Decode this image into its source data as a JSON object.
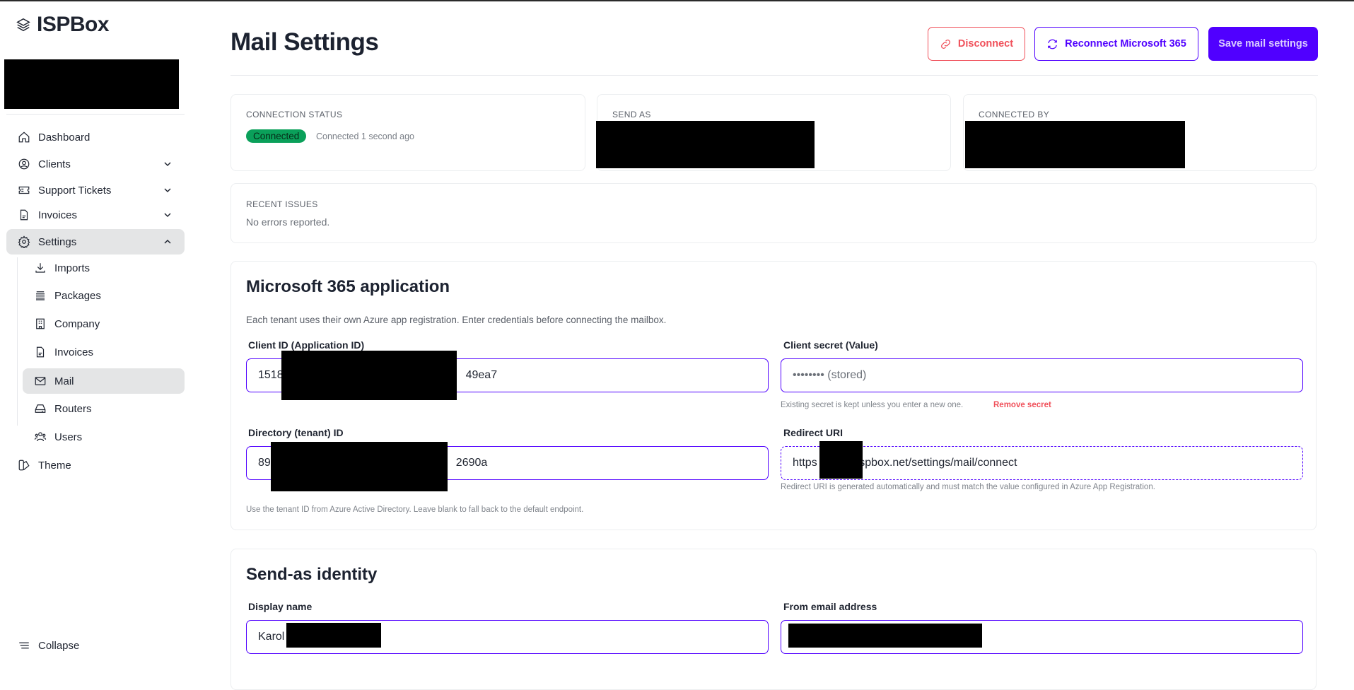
{
  "app": {
    "name": "ISPBox"
  },
  "sidebar": {
    "items": [
      {
        "label": "Dashboard",
        "icon": "home-icon"
      },
      {
        "label": "Clients",
        "icon": "user-circle-icon"
      },
      {
        "label": "Support Tickets",
        "icon": "ticket-icon"
      },
      {
        "label": "Invoices",
        "icon": "document-icon"
      },
      {
        "label": "Settings",
        "icon": "gear-icon"
      }
    ],
    "settings_items": [
      {
        "label": "Imports",
        "icon": "download-icon"
      },
      {
        "label": "Packages",
        "icon": "stack-icon"
      },
      {
        "label": "Company",
        "icon": "building-icon"
      },
      {
        "label": "Invoices",
        "icon": "document-icon"
      },
      {
        "label": "Mail",
        "icon": "envelope-icon"
      },
      {
        "label": "Routers",
        "icon": "router-icon"
      },
      {
        "label": "Users",
        "icon": "users-icon"
      }
    ],
    "theme": "Theme",
    "collapse": "Collapse"
  },
  "header": {
    "title": "Mail Settings",
    "disconnect": "Disconnect",
    "reconnect": "Reconnect Microsoft 365",
    "save": "Save mail settings"
  },
  "status": {
    "connection_caption": "CONNECTION STATUS",
    "badge": "Connected",
    "connected_time": "Connected 1 second ago",
    "send_as_caption": "SEND AS",
    "connected_by_caption": "CONNECTED BY",
    "recent_caption": "RECENT ISSUES",
    "recent_text": "No errors reported."
  },
  "ms365": {
    "title": "Microsoft 365 application",
    "description": "Each tenant uses their own Azure app registration. Enter credentials before connecting the mailbox.",
    "client_id_label": "Client ID (Application ID)",
    "client_id_prefix": "1518",
    "client_id_suffix": "49ea7",
    "secret_label": "Client secret (Value)",
    "secret_value": "•••••••• (stored)",
    "secret_hint": "Existing secret is kept unless you enter a new one.",
    "remove_secret": "Remove secret",
    "tenant_label": "Directory (tenant) ID",
    "tenant_prefix": "89",
    "tenant_suffix": "2690a",
    "tenant_hint": "Use the tenant ID from Azure Active Directory. Leave blank to fall back to the default endpoint.",
    "redirect_label": "Redirect URI",
    "redirect_prefix": "https",
    "redirect_suffix": "ispbox.net/settings/mail/connect",
    "redirect_hint": "Redirect URI is generated automatically and must match the value configured in Azure App Registration."
  },
  "identity": {
    "title": "Send-as identity",
    "display_name_label": "Display name",
    "display_name_prefix": "Karol",
    "from_label": "From email address"
  },
  "colors": {
    "accent": "#5000ff",
    "danger": "#f0505a",
    "success": "#0aa05a",
    "active_nav": "#e4e5e6"
  }
}
